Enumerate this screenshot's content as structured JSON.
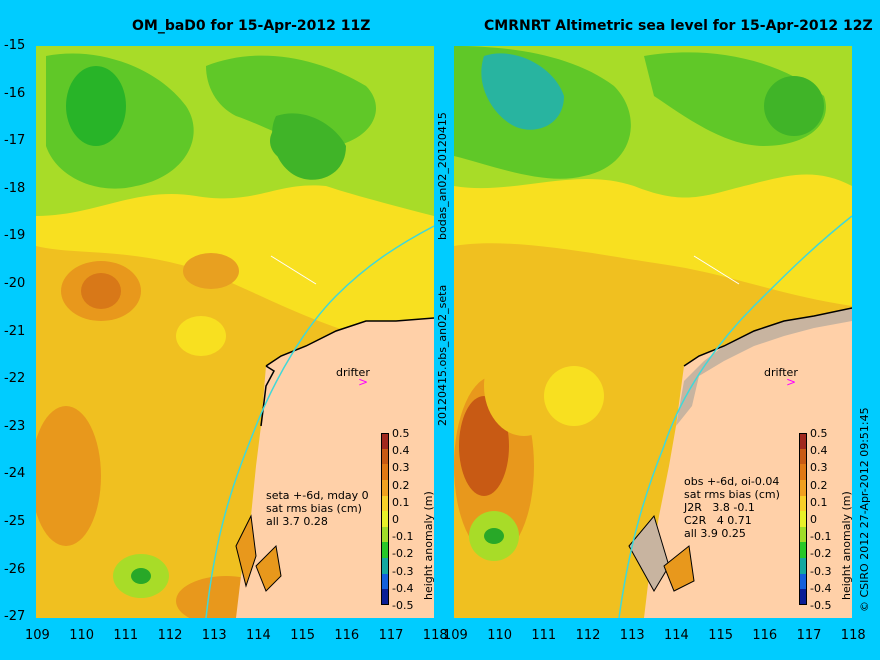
{
  "left_panel": {
    "title": "OM_baD0 for 15-Apr-2012 11Z",
    "side_label": "bodas_an02_20120415",
    "drifter_label": "drifter",
    "annotation": [
      "seta +-6d, mday 0",
      "sat rms bias (cm)",
      "all 3.7 0.28"
    ],
    "colorbar_title": "height anomaly (m)"
  },
  "right_panel": {
    "title": "CMRNRT Altimetric sea level  for 15-Apr-2012 12Z",
    "side_label": "20120415.obs_an02_seta",
    "drifter_label": "drifter",
    "annotation": [
      "obs +-6d, oi-0.04",
      "sat rms bias (cm)",
      "J2R   3.8 -0.1",
      "C2R   4 0.71",
      "all 3.9 0.25"
    ],
    "colorbar_title": "height anomaly (m)",
    "credit": "© CSIRO 2012   27-Apr-2012 09:51:45"
  },
  "axes": {
    "y_ticks": [
      "-15",
      "-16",
      "-17",
      "-18",
      "-19",
      "-20",
      "-21",
      "-22",
      "-23",
      "-24",
      "-25",
      "-26",
      "-27"
    ],
    "left_x_ticks": [
      "109",
      "110",
      "111",
      "112",
      "113",
      "114",
      "115",
      "116",
      "117",
      "118"
    ],
    "right_x_ticks": [
      "109",
      "110",
      "111",
      "112",
      "113",
      "114",
      "115",
      "116",
      "117",
      "118"
    ]
  },
  "colorbar": {
    "ticks": [
      "0.5",
      "0.4",
      "0.3",
      "0.2",
      "0.1",
      "0",
      "-0.1",
      "-0.2",
      "-0.3",
      "-0.4",
      "-0.5"
    ],
    "colors": [
      "#a0281e",
      "#c85a14",
      "#e07814",
      "#f0a020",
      "#f8d028",
      "#e8f028",
      "#a0dc28",
      "#28c828",
      "#14a8a0",
      "#1460dc",
      "#0a1e96"
    ]
  },
  "colors": {
    "background": "#00ccff",
    "land": "#ffd0a8",
    "coast_land_right": "#c8b4a0",
    "cyan_line": "#40d8d8",
    "drifter": "#ff00ff"
  }
}
